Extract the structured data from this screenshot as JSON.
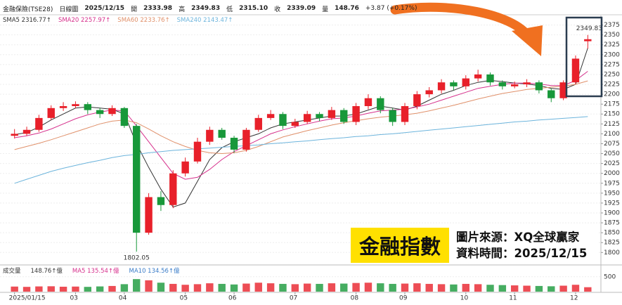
{
  "chart_data": {
    "type": "candlestick",
    "header": [
      "金融保險(TSE28)",
      "日線圖",
      "2025/12/15",
      "開",
      "2333.98",
      "高",
      "2349.83",
      "低",
      "2315.10",
      "收",
      "2339.09",
      "量",
      "148.76",
      "+3.87 (+0.17%)"
    ],
    "categories": [
      "2025/01/15",
      null,
      null,
      null,
      null,
      "03",
      null,
      null,
      null,
      "04",
      null,
      null,
      null,
      null,
      "05",
      null,
      null,
      null,
      "06",
      null,
      null,
      null,
      null,
      "07",
      null,
      null,
      null,
      null,
      "08",
      null,
      null,
      null,
      "09",
      null,
      null,
      null,
      null,
      "10",
      null,
      null,
      null,
      "11",
      null,
      null,
      null,
      null,
      "12",
      null
    ],
    "open": [
      2095,
      2100,
      2110,
      2140,
      2165,
      2170,
      2175,
      2160,
      2150,
      2165,
      2120,
      1850,
      1940,
      1920,
      2000,
      2030,
      2080,
      2110,
      2090,
      2060,
      2110,
      2140,
      2150,
      2120,
      2130,
      2150,
      2140,
      2160,
      2130,
      2170,
      2190,
      2160,
      2130,
      2170,
      2200,
      2210,
      2230,
      2220,
      2240,
      2250,
      2230,
      2220,
      2225,
      2230,
      2210,
      2190,
      2230,
      2333.98
    ],
    "high": [
      2112,
      2118,
      2148,
      2172,
      2180,
      2182,
      2180,
      2165,
      2172,
      2168,
      2125,
      1950,
      1955,
      2008,
      2040,
      2090,
      2118,
      2115,
      2095,
      2115,
      2148,
      2160,
      2155,
      2138,
      2158,
      2155,
      2168,
      2165,
      2178,
      2200,
      2195,
      2165,
      2178,
      2208,
      2218,
      2238,
      2235,
      2248,
      2262,
      2255,
      2235,
      2232,
      2238,
      2235,
      2215,
      2235,
      2298,
      2349.83
    ],
    "low": [
      2088,
      2095,
      2105,
      2135,
      2158,
      2165,
      2150,
      2140,
      2145,
      2115,
      1802.05,
      1845,
      1905,
      1912,
      1992,
      2025,
      2072,
      2085,
      2052,
      2055,
      2105,
      2135,
      2112,
      2115,
      2125,
      2132,
      2135,
      2125,
      2122,
      2162,
      2152,
      2120,
      2122,
      2162,
      2192,
      2202,
      2210,
      2212,
      2232,
      2222,
      2212,
      2215,
      2218,
      2202,
      2180,
      2185,
      2225,
      2315.1
    ],
    "close": [
      2100,
      2110,
      2140,
      2165,
      2170,
      2175,
      2160,
      2150,
      2165,
      2120,
      1850,
      1940,
      1920,
      2000,
      2030,
      2080,
      2110,
      2090,
      2060,
      2110,
      2140,
      2150,
      2120,
      2130,
      2150,
      2140,
      2160,
      2130,
      2170,
      2190,
      2160,
      2130,
      2170,
      2200,
      2210,
      2230,
      2220,
      2240,
      2250,
      2230,
      2220,
      2225,
      2230,
      2210,
      2190,
      2230,
      2290,
      2339.09
    ],
    "up_color": "#e8202a",
    "down_color": "#18983a",
    "series": [
      {
        "name": "SMA5",
        "legend_value": "2316.77↑",
        "color": "#333333",
        "values": [
          2098,
          2103,
          2117,
          2135,
          2150,
          2165,
          2168,
          2165,
          2162,
          2150,
          2075,
          2015,
          1960,
          1915,
          1925,
          1980,
          2035,
          2065,
          2080,
          2090,
          2100,
          2115,
          2125,
          2130,
          2135,
          2140,
          2145,
          2145,
          2150,
          2160,
          2170,
          2165,
          2160,
          2170,
          2185,
          2200,
          2210,
          2222,
          2230,
          2235,
          2232,
          2228,
          2226,
          2222,
          2215,
          2212,
          2225,
          2316.77
        ]
      },
      {
        "name": "SMA20",
        "legend_value": "2257.97↑",
        "color": "#d6308c",
        "values": [
          2090,
          2095,
          2102,
          2112,
          2125,
          2138,
          2148,
          2155,
          2160,
          2158,
          2120,
          2080,
          2040,
          2000,
          1985,
          1990,
          2010,
          2035,
          2055,
          2070,
          2085,
          2100,
          2110,
          2118,
          2125,
          2132,
          2138,
          2140,
          2145,
          2152,
          2158,
          2160,
          2162,
          2168,
          2175,
          2185,
          2195,
          2205,
          2215,
          2220,
          2225,
          2228,
          2228,
          2226,
          2222,
          2222,
          2235,
          2257.97
        ]
      },
      {
        "name": "SMA60",
        "legend_value": "2233.76↑",
        "color": "#e0906a",
        "values": [
          2060,
          2068,
          2076,
          2085,
          2095,
          2105,
          2115,
          2125,
          2132,
          2135,
          2128,
          2112,
          2095,
          2080,
          2068,
          2058,
          2052,
          2050,
          2052,
          2058,
          2068,
          2080,
          2092,
          2100,
          2108,
          2115,
          2122,
          2128,
          2133,
          2138,
          2142,
          2145,
          2148,
          2152,
          2158,
          2165,
          2172,
          2180,
          2188,
          2195,
          2202,
          2207,
          2212,
          2215,
          2218,
          2220,
          2225,
          2233.76
        ]
      },
      {
        "name": "SMA240",
        "legend_value": "2143.47↑",
        "color": "#6cb4dc",
        "values": [
          1975,
          1985,
          1995,
          2005,
          2013,
          2020,
          2027,
          2033,
          2040,
          2045,
          2048,
          2052,
          2055,
          2058,
          2060,
          2062,
          2064,
          2066,
          2068,
          2070,
          2072,
          2075,
          2077,
          2080,
          2082,
          2085,
          2088,
          2090,
          2093,
          2095,
          2098,
          2100,
          2103,
          2106,
          2109,
          2112,
          2115,
          2118,
          2121,
          2124,
          2127,
          2130,
          2132,
          2135,
          2137,
          2139,
          2141,
          2143.47
        ]
      }
    ],
    "ylim": [
      1781,
      2392
    ],
    "yticks": [
      1800,
      1825,
      1850,
      1875,
      1900,
      1925,
      1950,
      1975,
      2000,
      2025,
      2050,
      2075,
      2100,
      2125,
      2150,
      2175,
      2200,
      2225,
      2250,
      2275,
      2300,
      2325,
      2350,
      2375
    ],
    "grid": true,
    "annotations": [
      "2349.83",
      "1802.05"
    ],
    "volume": {
      "legend": [
        "成交量",
        "148.76↑億",
        "MA5 135.54↑億",
        "MA10 134.56↑億"
      ],
      "color": "#e8202a",
      "values": [
        170,
        160,
        175,
        180,
        165,
        170,
        160,
        175,
        190,
        250,
        420,
        380,
        300,
        260,
        230,
        250,
        280,
        260,
        240,
        270,
        300,
        280,
        260,
        250,
        270,
        260,
        280,
        270,
        290,
        300,
        280,
        260,
        270,
        280,
        260,
        250,
        240,
        260,
        250,
        230,
        220,
        210,
        200,
        190,
        180,
        200,
        230,
        148.76
      ],
      "ylim": [
        0,
        800
      ],
      "yticks": [
        500
      ]
    },
    "overlay": {
      "badge": "金融指數",
      "source": "圖片來源：XQ全球贏家",
      "time": "資料時間：2025/12/15"
    }
  }
}
